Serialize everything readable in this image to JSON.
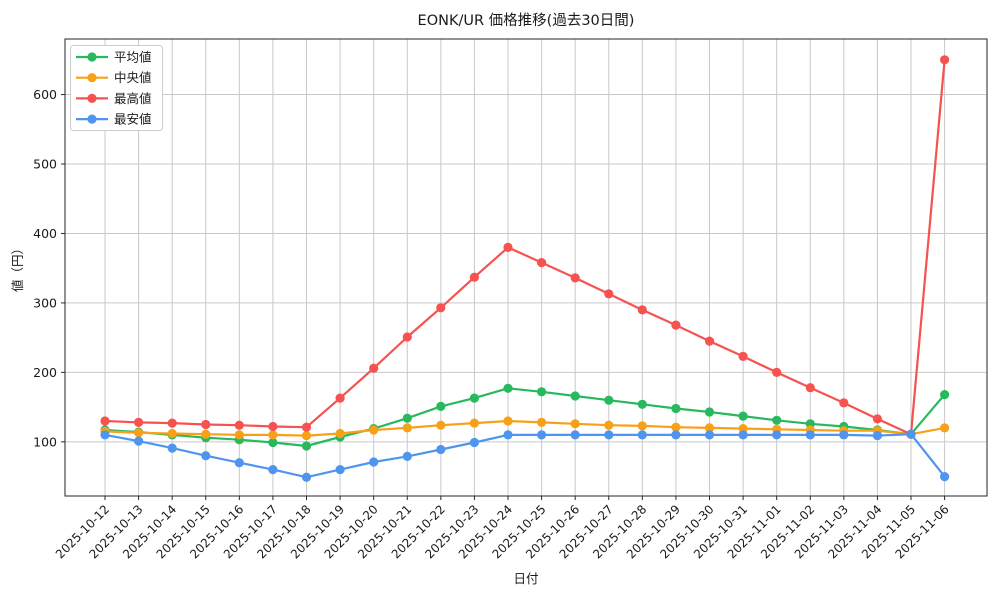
{
  "chart_data": {
    "type": "line",
    "title": "EONK/UR 価格推移(過去30日間)",
    "xlabel": "日付",
    "ylabel": "値（円）",
    "x": [
      "2025-10-12",
      "2025-10-13",
      "2025-10-14",
      "2025-10-15",
      "2025-10-16",
      "2025-10-17",
      "2025-10-18",
      "2025-10-19",
      "2025-10-20",
      "2025-10-21",
      "2025-10-22",
      "2025-10-23",
      "2025-10-24",
      "2025-10-25",
      "2025-10-26",
      "2025-10-27",
      "2025-10-28",
      "2025-10-29",
      "2025-10-30",
      "2025-10-31",
      "2025-11-01",
      "2025-11-02",
      "2025-11-03",
      "2025-11-04",
      "2025-11-05",
      "2025-11-06"
    ],
    "series": [
      {
        "id": "average",
        "name": "平均値",
        "color": "#28b95f",
        "values": [
          117,
          114,
          110,
          106,
          103,
          99,
          94,
          107,
          119,
          134,
          151,
          163,
          177,
          172,
          166,
          160,
          154,
          148,
          143,
          137,
          131,
          126,
          122,
          117,
          111,
          168
        ]
      },
      {
        "id": "median",
        "name": "中央値",
        "color": "#f9a019",
        "values": [
          115,
          113,
          112,
          111,
          110,
          110,
          109,
          112,
          117,
          120,
          124,
          127,
          130,
          128,
          126,
          124,
          123,
          121,
          120,
          119,
          118,
          117,
          116,
          116,
          111,
          120
        ]
      },
      {
        "id": "max",
        "name": "最高値",
        "color": "#f65250",
        "values": [
          130,
          128,
          127,
          125,
          124,
          122,
          121,
          163,
          206,
          251,
          293,
          337,
          380,
          358,
          336,
          313,
          290,
          268,
          245,
          223,
          200,
          178,
          156,
          133,
          111,
          650
        ]
      },
      {
        "id": "min",
        "name": "最安値",
        "color": "#4e95ef",
        "values": [
          110,
          101,
          91,
          80,
          70,
          60,
          49,
          60,
          71,
          79,
          89,
          99,
          110,
          110,
          110,
          110,
          110,
          110,
          110,
          110,
          110,
          110,
          110,
          109,
          111,
          50
        ]
      }
    ],
    "yticks": [
      100,
      200,
      300,
      400,
      500,
      600
    ],
    "ylim": [
      22,
      680
    ],
    "grid": true,
    "grid_color": "#c9c9c9",
    "spine_color": "#262626",
    "legend_position": "upper-left",
    "background": "#ffffff"
  }
}
